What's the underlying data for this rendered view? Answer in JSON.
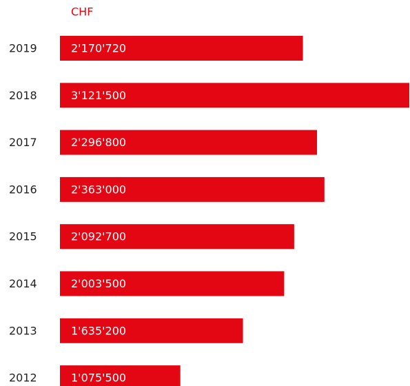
{
  "chart_data": {
    "type": "barh",
    "xlabel": "CHF",
    "categories": [
      "2019",
      "2018",
      "2017",
      "2016",
      "2015",
      "2014",
      "2013",
      "2012"
    ],
    "values": [
      2170720,
      3121500,
      2296800,
      2363000,
      2092700,
      2003500,
      1635200,
      1075500
    ],
    "value_labels": [
      "2'170'720",
      "3'121'500",
      "2'296'800",
      "2'363'000",
      "2'092'700",
      "2'003'500",
      "1'635'200",
      "1'075'500"
    ],
    "color": "#e30613",
    "xlim": [
      0,
      3121500
    ]
  }
}
